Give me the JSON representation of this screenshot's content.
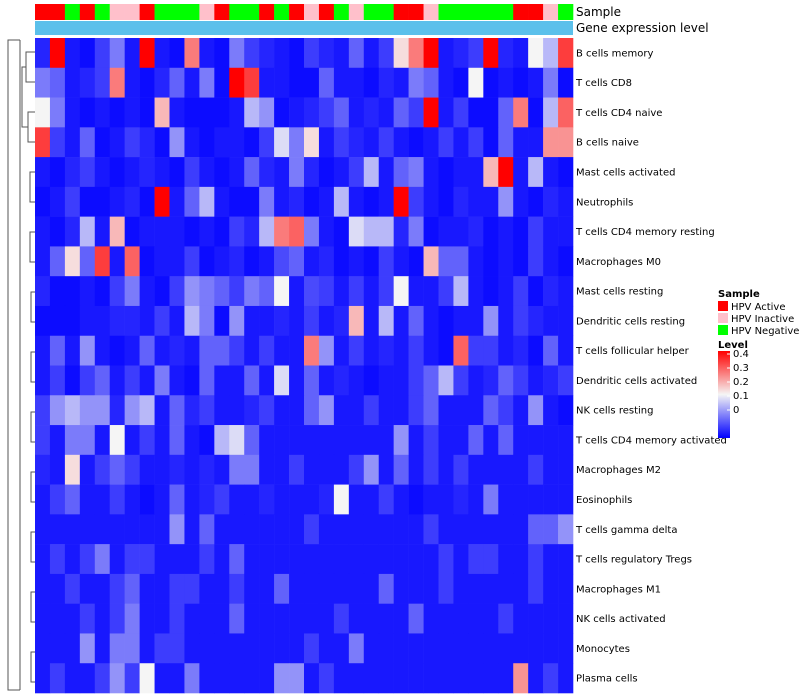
{
  "chart_data": {
    "type": "heatmap",
    "annotation_tracks": [
      "Sample",
      "Gene expression level"
    ],
    "sample_legend": {
      "title": "Sample",
      "entries": [
        {
          "label": "HPV Active",
          "color": "#FF0000"
        },
        {
          "label": "HPV Inactive",
          "color": "#FFC0CB"
        },
        {
          "label": "HPV Negative",
          "color": "#00FF00"
        }
      ]
    },
    "level_legend": {
      "title": "Level",
      "ticks": [
        "0.4",
        "0.3",
        "0.2",
        "0.1",
        "0"
      ],
      "range": [
        0,
        0.4
      ],
      "colors": {
        "low": "#0000FF",
        "mid": "#F5F5F5",
        "high": "#FF0000"
      }
    },
    "gene_expression_color": "#5BC0EB",
    "sample_groups": [
      "A",
      "A",
      "N",
      "A",
      "N",
      "I",
      "I",
      "A",
      "N",
      "N",
      "N",
      "I",
      "A",
      "N",
      "N",
      "A",
      "N",
      "A",
      "I",
      "A",
      "N",
      "I",
      "N",
      "N",
      "A",
      "A",
      "I",
      "N",
      "N",
      "N",
      "N",
      "N",
      "A",
      "A",
      "I",
      "N"
    ],
    "rows": [
      "B cells memory",
      "T cells CD8",
      "T cells CD4 naive",
      "B cells naive",
      "Mast cells activated",
      "Neutrophils",
      "T cells CD4 memory resting",
      "Macrophages M0",
      "Mast cells resting",
      "Dendritic cells resting",
      "T cells follicular helper",
      "Dendritic cells activated",
      "NK cells resting",
      "T cells CD4 memory activated",
      "Macrophages M2",
      "Eosinophils",
      "T cells gamma delta",
      "T cells regulatory  Tregs",
      "Macrophages M1",
      "NK cells activated",
      "Monocytes",
      "Plasma cells"
    ],
    "values": [
      [
        0.03,
        0.4,
        0.02,
        0.01,
        0.05,
        0.1,
        0.02,
        0.4,
        0.02,
        0.01,
        0.3,
        0.02,
        0.01,
        0.1,
        0.05,
        0.03,
        0.02,
        0.01,
        0.05,
        0.03,
        0.02,
        0.08,
        0.02,
        0.05,
        0.22,
        0.3,
        0.4,
        0.02,
        0.03,
        0.05,
        0.4,
        0.03,
        0.02,
        0.2,
        0.15,
        0.35
      ],
      [
        0.1,
        0.08,
        0.02,
        0.03,
        0.05,
        0.3,
        0.02,
        0.01,
        0.03,
        0.08,
        0.02,
        0.1,
        0.01,
        0.4,
        0.35,
        0.02,
        0.02,
        0.01,
        0.01,
        0.08,
        0.02,
        0.02,
        0.01,
        0.03,
        0.02,
        0.1,
        0.08,
        0.02,
        0.01,
        0.2,
        0.01,
        0.02,
        0.01,
        0.02,
        0.1,
        0.01
      ],
      [
        0.2,
        0.1,
        0.02,
        0.01,
        0.02,
        0.01,
        0.02,
        0.01,
        0.25,
        0.02,
        0.01,
        0.01,
        0.01,
        0.02,
        0.15,
        0.12,
        0.01,
        0.02,
        0.03,
        0.05,
        0.08,
        0.02,
        0.03,
        0.02,
        0.08,
        0.05,
        0.4,
        0.02,
        0.05,
        0.01,
        0.01,
        0.08,
        0.3,
        0.01,
        0.15,
        0.32
      ],
      [
        0.35,
        0.05,
        0.02,
        0.08,
        0.01,
        0.02,
        0.05,
        0.03,
        0.01,
        0.12,
        0.02,
        0.01,
        0.02,
        0.02,
        0.01,
        0.05,
        0.18,
        0.1,
        0.22,
        0.02,
        0.05,
        0.03,
        0.02,
        0.05,
        0.02,
        0.01,
        0.02,
        0.05,
        0.02,
        0.05,
        0.01,
        0.08,
        0.02,
        0.02,
        0.28,
        0.28
      ],
      [
        0.02,
        0.01,
        0.03,
        0.05,
        0.02,
        0.01,
        0.02,
        0.03,
        0.02,
        0.01,
        0.05,
        0.02,
        0.01,
        0.02,
        0.08,
        0.03,
        0.02,
        0.1,
        0.03,
        0.01,
        0.02,
        0.05,
        0.15,
        0.02,
        0.08,
        0.1,
        0.02,
        0.01,
        0.02,
        0.02,
        0.25,
        0.4,
        0.02,
        0.15,
        0.02,
        0.01
      ],
      [
        0.01,
        0.02,
        0.05,
        0.01,
        0.01,
        0.02,
        0.03,
        0.01,
        0.4,
        0.02,
        0.08,
        0.15,
        0.02,
        0.01,
        0.01,
        0.1,
        0.02,
        0.03,
        0.01,
        0.02,
        0.15,
        0.02,
        0.01,
        0.02,
        0.4,
        0.05,
        0.02,
        0.01,
        0.03,
        0.02,
        0.02,
        0.12,
        0.02,
        0.01,
        0.03,
        0.02
      ],
      [
        0.02,
        0.01,
        0.03,
        0.15,
        0.02,
        0.25,
        0.01,
        0.02,
        0.02,
        0.02,
        0.01,
        0.02,
        0.01,
        0.05,
        0.03,
        0.15,
        0.3,
        0.32,
        0.1,
        0.02,
        0.01,
        0.18,
        0.15,
        0.15,
        0.03,
        0.1,
        0.01,
        0.02,
        0.02,
        0.03,
        0.01,
        0.02,
        0.01,
        0.05,
        0.02,
        0.02
      ],
      [
        0.02,
        0.08,
        0.22,
        0.08,
        0.35,
        0.02,
        0.32,
        0.01,
        0.02,
        0.02,
        0.05,
        0.01,
        0.02,
        0.03,
        0.01,
        0.02,
        0.06,
        0.08,
        0.02,
        0.03,
        0.01,
        0.02,
        0.01,
        0.05,
        0.02,
        0.01,
        0.25,
        0.08,
        0.08,
        0.02,
        0.01,
        0.02,
        0.01,
        0.05,
        0.02,
        0.01
      ],
      [
        0.03,
        0.01,
        0.01,
        0.02,
        0.01,
        0.05,
        0.1,
        0.02,
        0.01,
        0.05,
        0.12,
        0.1,
        0.08,
        0.05,
        0.1,
        0.08,
        0.2,
        0.02,
        0.06,
        0.05,
        0.02,
        0.05,
        0.02,
        0.05,
        0.2,
        0.02,
        0.02,
        0.05,
        0.15,
        0.02,
        0.01,
        0.02,
        0.05,
        0.01,
        0.03,
        0.02
      ],
      [
        0.01,
        0.01,
        0.01,
        0.02,
        0.02,
        0.03,
        0.03,
        0.02,
        0.05,
        0.02,
        0.15,
        0.1,
        0.01,
        0.12,
        0.02,
        0.02,
        0.03,
        0.02,
        0.05,
        0.02,
        0.03,
        0.25,
        0.02,
        0.15,
        0.02,
        0.08,
        0.02,
        0.01,
        0.02,
        0.02,
        0.12,
        0.02,
        0.05,
        0.03,
        0.02,
        0.02
      ],
      [
        0.02,
        0.08,
        0.02,
        0.12,
        0.02,
        0.01,
        0.02,
        0.08,
        0.02,
        0.03,
        0.02,
        0.08,
        0.08,
        0.05,
        0.02,
        0.05,
        0.02,
        0.02,
        0.3,
        0.12,
        0.02,
        0.05,
        0.02,
        0.03,
        0.02,
        0.05,
        0.02,
        0.01,
        0.32,
        0.05,
        0.05,
        0.02,
        0.03,
        0.01,
        0.08,
        0.02
      ],
      [
        0.02,
        0.05,
        0.01,
        0.05,
        0.08,
        0.02,
        0.05,
        0.02,
        0.1,
        0.02,
        0.01,
        0.08,
        0.02,
        0.02,
        0.08,
        0.02,
        0.18,
        0.02,
        0.08,
        0.02,
        0.03,
        0.02,
        0.01,
        0.02,
        0.02,
        0.05,
        0.08,
        0.15,
        0.05,
        0.02,
        0.03,
        0.08,
        0.05,
        0.02,
        0.03,
        0.05
      ],
      [
        0.05,
        0.12,
        0.15,
        0.12,
        0.12,
        0.03,
        0.12,
        0.15,
        0.02,
        0.08,
        0.03,
        0.05,
        0.02,
        0.02,
        0.03,
        0.05,
        0.02,
        0.02,
        0.08,
        0.12,
        0.02,
        0.02,
        0.05,
        0.02,
        0.02,
        0.05,
        0.08,
        0.02,
        0.02,
        0.02,
        0.08,
        0.05,
        0.02,
        0.12,
        0.02,
        0.01
      ],
      [
        0.05,
        0.02,
        0.1,
        0.1,
        0.02,
        0.2,
        0.02,
        0.05,
        0.02,
        0.08,
        0.02,
        0.01,
        0.15,
        0.18,
        0.08,
        0.02,
        0.02,
        0.02,
        0.02,
        0.02,
        0.02,
        0.02,
        0.02,
        0.02,
        0.12,
        0.02,
        0.05,
        0.02,
        0.02,
        0.08,
        0.02,
        0.08,
        0.02,
        0.02,
        0.02,
        0.02
      ],
      [
        0.03,
        0.02,
        0.22,
        0.02,
        0.05,
        0.08,
        0.05,
        0.02,
        0.02,
        0.03,
        0.02,
        0.03,
        0.02,
        0.1,
        0.1,
        0.02,
        0.02,
        0.05,
        0.02,
        0.02,
        0.02,
        0.05,
        0.12,
        0.02,
        0.08,
        0.02,
        0.05,
        0.02,
        0.05,
        0.02,
        0.02,
        0.02,
        0.02,
        0.05,
        0.02,
        0.02
      ],
      [
        0.02,
        0.05,
        0.08,
        0.02,
        0.02,
        0.05,
        0.02,
        0.01,
        0.02,
        0.08,
        0.02,
        0.03,
        0.05,
        0.02,
        0.02,
        0.03,
        0.02,
        0.02,
        0.02,
        0.03,
        0.2,
        0.02,
        0.02,
        0.05,
        0.02,
        0.01,
        0.02,
        0.02,
        0.03,
        0.02,
        0.1,
        0.02,
        0.02,
        0.02,
        0.02,
        0.02
      ],
      [
        0.02,
        0.02,
        0.02,
        0.02,
        0.02,
        0.02,
        0.02,
        0.02,
        0.02,
        0.12,
        0.02,
        0.08,
        0.02,
        0.02,
        0.02,
        0.02,
        0.02,
        0.02,
        0.05,
        0.02,
        0.02,
        0.02,
        0.02,
        0.02,
        0.02,
        0.02,
        0.05,
        0.02,
        0.02,
        0.02,
        0.02,
        0.02,
        0.02,
        0.08,
        0.08,
        0.12
      ],
      [
        0.02,
        0.05,
        0.02,
        0.05,
        0.1,
        0.02,
        0.05,
        0.05,
        0.02,
        0.02,
        0.02,
        0.05,
        0.02,
        0.08,
        0.02,
        0.02,
        0.02,
        0.02,
        0.02,
        0.02,
        0.02,
        0.02,
        0.02,
        0.02,
        0.02,
        0.02,
        0.02,
        0.05,
        0.02,
        0.05,
        0.05,
        0.02,
        0.02,
        0.05,
        0.02,
        0.02
      ],
      [
        0.02,
        0.02,
        0.05,
        0.02,
        0.02,
        0.05,
        0.08,
        0.02,
        0.02,
        0.05,
        0.05,
        0.02,
        0.02,
        0.05,
        0.02,
        0.02,
        0.08,
        0.02,
        0.02,
        0.02,
        0.02,
        0.02,
        0.02,
        0.08,
        0.02,
        0.02,
        0.02,
        0.05,
        0.02,
        0.02,
        0.02,
        0.02,
        0.02,
        0.05,
        0.02,
        0.02
      ],
      [
        0.02,
        0.02,
        0.02,
        0.05,
        0.02,
        0.05,
        0.1,
        0.02,
        0.02,
        0.05,
        0.02,
        0.02,
        0.02,
        0.08,
        0.02,
        0.02,
        0.02,
        0.02,
        0.02,
        0.02,
        0.05,
        0.02,
        0.02,
        0.02,
        0.02,
        0.08,
        0.02,
        0.02,
        0.02,
        0.02,
        0.02,
        0.05,
        0.02,
        0.02,
        0.02,
        0.02
      ],
      [
        0.02,
        0.02,
        0.02,
        0.12,
        0.02,
        0.1,
        0.1,
        0.02,
        0.05,
        0.05,
        0.02,
        0.02,
        0.02,
        0.02,
        0.02,
        0.02,
        0.02,
        0.02,
        0.05,
        0.02,
        0.02,
        0.1,
        0.02,
        0.02,
        0.02,
        0.02,
        0.02,
        0.02,
        0.02,
        0.02,
        0.02,
        0.02,
        0.02,
        0.02,
        0.02,
        0.02
      ],
      [
        0.02,
        0.05,
        0.02,
        0.02,
        0.05,
        0.12,
        0.05,
        0.2,
        0.02,
        0.02,
        0.1,
        0.02,
        0.02,
        0.02,
        0.02,
        0.02,
        0.12,
        0.12,
        0.02,
        0.05,
        0.02,
        0.02,
        0.02,
        0.02,
        0.02,
        0.02,
        0.02,
        0.02,
        0.02,
        0.02,
        0.02,
        0.02,
        0.28,
        0.02,
        0.05,
        0.02
      ]
    ]
  }
}
